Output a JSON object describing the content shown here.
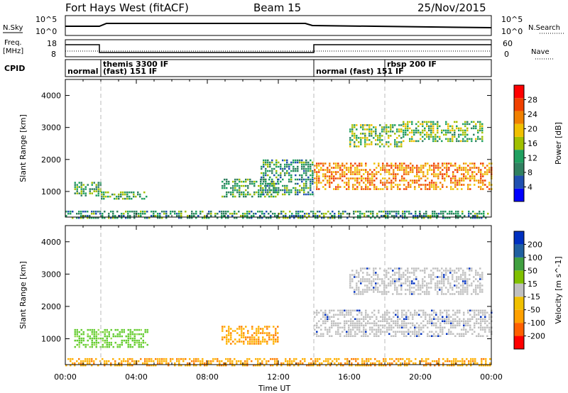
{
  "header": {
    "radar": "Fort Hays West (fitACF)",
    "beam": "Beam 15",
    "date": "25/Nov/2015"
  },
  "noise_panel": {
    "left_label": "N.Sky",
    "left_top": "10^5",
    "left_bottom": "10^0",
    "right_top": "10^5",
    "right_bottom": "10^0",
    "right_label": "N.Search"
  },
  "freq_panel": {
    "left_label_1": "Freq.",
    "left_label_2": "[MHz]",
    "left_top": "18",
    "left_bottom": "8",
    "right_top": "60",
    "right_bottom": "0",
    "right_label": "Nave"
  },
  "cpid": {
    "label": "CPID",
    "segments": [
      {
        "text": "normal",
        "x_hour": 0.0
      },
      {
        "text": "themis 3300 IF",
        "x_hour": 2.0,
        "upper": true
      },
      {
        "text": "(fast) 151 IF",
        "x_hour": 2.0
      },
      {
        "text": "normal (fast) 151 IF",
        "x_hour": 14.0
      },
      {
        "text": "rbsp 200 IF",
        "x_hour": 18.0,
        "upper": true
      }
    ]
  },
  "time_axis": {
    "label": "Time UT",
    "ticks": [
      "00:00",
      "04:00",
      "08:00",
      "12:00",
      "16:00",
      "20:00",
      "00:00"
    ]
  },
  "colors": {
    "power": [
      "#0000ff",
      "#2050b0",
      "#308060",
      "#20a060",
      "#a0c000",
      "#f0c000",
      "#f08000",
      "#f04000",
      "#ff0000"
    ],
    "velocity_gray": "#c0c0c0"
  },
  "chart_data": [
    {
      "type": "heatmap",
      "title": "Power",
      "xlabel": "Time UT",
      "ylabel": "Slant Range [km]",
      "xlim": [
        0,
        24
      ],
      "ylim": [
        200,
        4500
      ],
      "yticks": [
        "1000",
        "2000",
        "3000",
        "4000"
      ],
      "colorbar": {
        "label": "Power [dB]",
        "range": [
          0,
          32
        ],
        "ticks": [
          "4",
          "8",
          "12",
          "16",
          "20",
          "24",
          "28"
        ]
      },
      "regions": [
        {
          "t": [
            0.5,
            2.0
          ],
          "r": [
            850,
            1300
          ],
          "level": 12
        },
        {
          "t": [
            2.0,
            4.6
          ],
          "r": [
            750,
            1000
          ],
          "level": 12
        },
        {
          "t": [
            8.8,
            12.0
          ],
          "r": [
            850,
            1400
          ],
          "level": 12
        },
        {
          "t": [
            11.0,
            13.9
          ],
          "r": [
            900,
            2000
          ],
          "level": 10
        },
        {
          "t": [
            14.0,
            24.0
          ],
          "r": [
            1100,
            1900
          ],
          "level": 24
        },
        {
          "t": [
            16.0,
            19.0
          ],
          "r": [
            2400,
            3100
          ],
          "level": 14
        },
        {
          "t": [
            19.0,
            23.5
          ],
          "r": [
            2600,
            3200
          ],
          "level": 14
        },
        {
          "t": [
            0.0,
            24.0
          ],
          "r": [
            200,
            400
          ],
          "level": 10
        }
      ]
    },
    {
      "type": "heatmap",
      "title": "Velocity",
      "xlabel": "Time UT",
      "ylabel": "Slant Range [km]",
      "xlim": [
        0,
        24
      ],
      "ylim": [
        200,
        4500
      ],
      "yticks": [
        "1000",
        "2000",
        "3000",
        "4000"
      ],
      "colorbar": {
        "label": "Velocity [m s^-1]",
        "ticks": [
          "200",
          "100",
          "50",
          "15",
          "-15",
          "-50",
          "-100",
          "-200"
        ]
      },
      "regions": [
        {
          "t": [
            0.5,
            4.6
          ],
          "r": [
            750,
            1300
          ],
          "velocity": 60
        },
        {
          "t": [
            8.8,
            12.0
          ],
          "r": [
            850,
            1400
          ],
          "velocity": -60
        },
        {
          "t": [
            14.0,
            24.0
          ],
          "r": [
            1100,
            1900
          ],
          "velocity": 0
        },
        {
          "t": [
            16.0,
            23.5
          ],
          "r": [
            2400,
            3200
          ],
          "velocity": 0
        },
        {
          "t": [
            0.0,
            24.0
          ],
          "r": [
            200,
            400
          ],
          "velocity": -40
        }
      ]
    }
  ]
}
